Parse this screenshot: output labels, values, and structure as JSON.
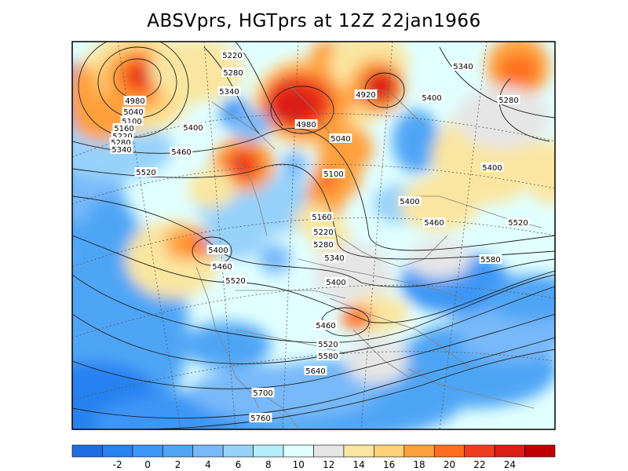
{
  "title": "ABSVprs, HGTprs at 12Z  22jan1966",
  "colorbar": {
    "colors": [
      "#1e6ee1",
      "#2882f0",
      "#3c96f5",
      "#50a5f5",
      "#78b9fa",
      "#96d2fa",
      "#b4f0fa",
      "#e1ffff",
      "#e6e6e6",
      "#fae6a0",
      "#ffd278",
      "#ffa03c",
      "#ff6e1e",
      "#f03c1e",
      "#dc1e14",
      "#c00000"
    ],
    "ticks": [
      "-2",
      "0",
      "2",
      "4",
      "6",
      "8",
      "10",
      "12",
      "14",
      "16",
      "18",
      "20",
      "22",
      "24"
    ]
  },
  "contour_labels": [
    "5220",
    "5280",
    "5340",
    "4980",
    "5040",
    "5100",
    "5160",
    "5220",
    "5280",
    "5340",
    "5400",
    "5460",
    "5520",
    "4980",
    "4920",
    "5340",
    "5400",
    "5280",
    "5040",
    "5100",
    "5160",
    "5220",
    "5280",
    "5340",
    "5400",
    "5400",
    "5460",
    "5520",
    "5400",
    "5400",
    "5460",
    "5520",
    "5580",
    "5460",
    "5520",
    "5580",
    "5640",
    "5700",
    "5760"
  ],
  "colors": {
    "frame": "#000000",
    "contour": "#202020",
    "map_lines": "#808080"
  }
}
